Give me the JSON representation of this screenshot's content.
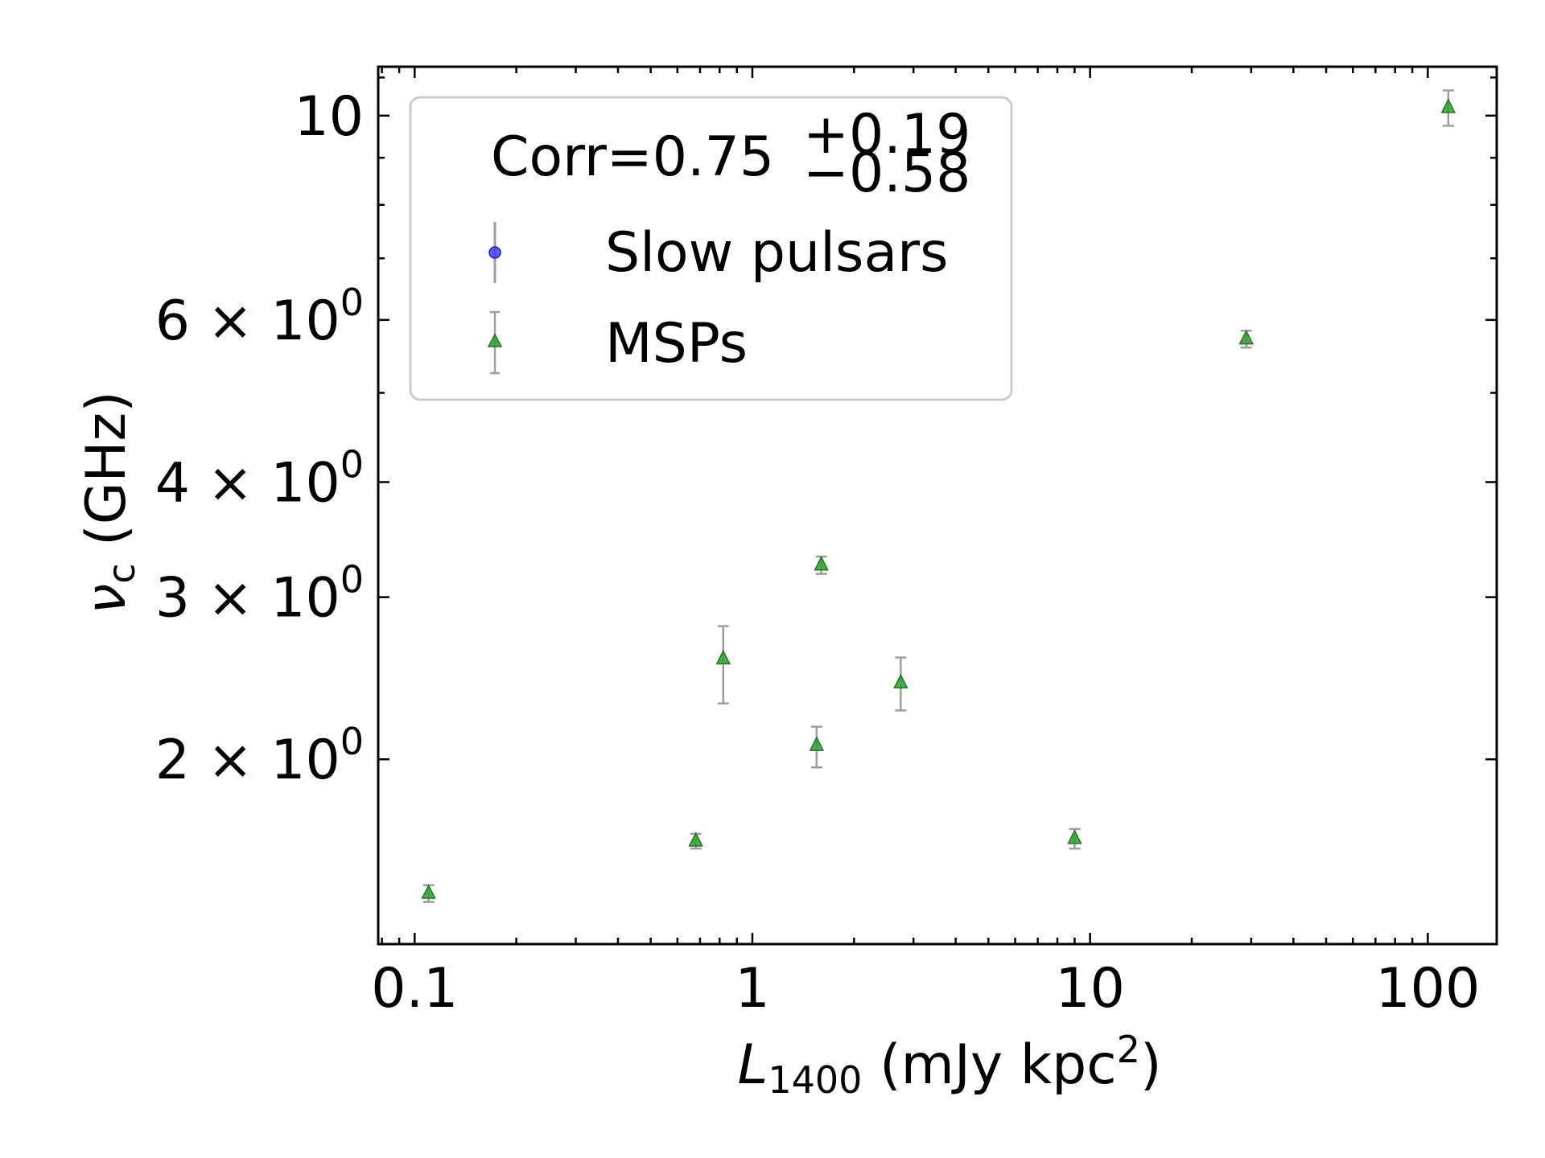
{
  "chart_data": {
    "type": "scatter",
    "title": "",
    "xlabel": {
      "symbol": "L",
      "sub": "1400",
      "text": " (mJy kpc",
      "sup": "2",
      "end": ")"
    },
    "ylabel": {
      "symbol": "ν",
      "sub": "c",
      "text": " (GHz)"
    },
    "xscale": "log",
    "yscale": "log",
    "xlim": [
      0.078,
      160
    ],
    "ylim": [
      1.26,
      11.3
    ],
    "grid": false,
    "legend_position": "top-left",
    "x_ticks": [
      {
        "value": 0.1,
        "label": "0.1"
      },
      {
        "value": 1,
        "label": "1"
      },
      {
        "value": 10,
        "label": "10"
      },
      {
        "value": 100,
        "label": "100"
      }
    ],
    "y_ticks": [
      {
        "value": 2,
        "mant": "2",
        "base": "× 10",
        "exp": "0"
      },
      {
        "value": 3,
        "mant": "3",
        "base": "× 10",
        "exp": "0"
      },
      {
        "value": 4,
        "mant": "4",
        "base": "× 10",
        "exp": "0"
      },
      {
        "value": 6,
        "mant": "6",
        "base": "× 10",
        "exp": "0"
      },
      {
        "value": 10,
        "label": "10"
      }
    ],
    "legend": {
      "title": {
        "prefix": "Corr=0.75",
        "sup": "+0.19",
        "sub": "−0.58"
      },
      "entries": [
        {
          "name": "Slow pulsars",
          "marker": "circle",
          "color": "#4040ff"
        },
        {
          "name": "MSPs",
          "marker": "triangle",
          "color": "#2ca02c"
        }
      ]
    },
    "series": [
      {
        "name": "Slow pulsars",
        "marker": "circle",
        "color": "#4040ff",
        "points": []
      },
      {
        "name": "MSPs",
        "marker": "triangle",
        "color": "#2ca02c",
        "errorbar_color": "#9e9e9e",
        "points": [
          {
            "x": 0.11,
            "y": 1.43,
            "yerr_low": 0.03,
            "yerr_high": 0.03
          },
          {
            "x": 0.68,
            "y": 1.63,
            "yerr_low": 0.03,
            "yerr_high": 0.03
          },
          {
            "x": 0.82,
            "y": 2.57,
            "yerr_low": 0.27,
            "yerr_high": 0.22
          },
          {
            "x": 1.55,
            "y": 2.07,
            "yerr_low": 0.11,
            "yerr_high": 0.1
          },
          {
            "x": 1.6,
            "y": 3.25,
            "yerr_low": 0.07,
            "yerr_high": 0.07
          },
          {
            "x": 2.75,
            "y": 2.42,
            "yerr_low": 0.16,
            "yerr_high": 0.16
          },
          {
            "x": 9.0,
            "y": 1.64,
            "yerr_low": 0.04,
            "yerr_high": 0.04
          },
          {
            "x": 29.0,
            "y": 5.72,
            "yerr_low": 0.12,
            "yerr_high": 0.12
          },
          {
            "x": 115.0,
            "y": 10.2,
            "yerr_low": 0.45,
            "yerr_high": 0.45
          }
        ]
      }
    ]
  }
}
